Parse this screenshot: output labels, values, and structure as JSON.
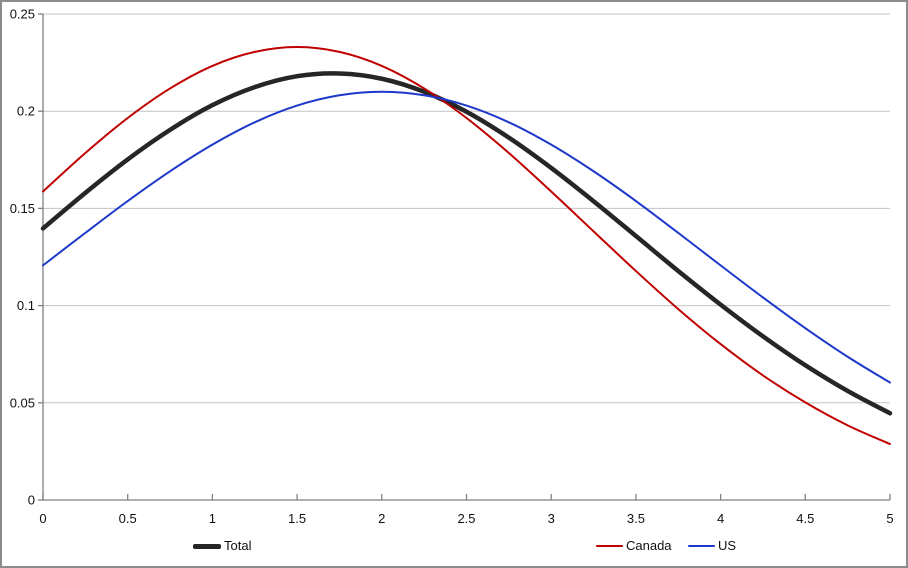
{
  "chart_data": {
    "type": "line",
    "x": [
      0,
      0.25,
      0.5,
      0.75,
      1,
      1.25,
      1.5,
      1.75,
      2,
      2.25,
      2.5,
      2.75,
      3,
      3.25,
      3.5,
      3.75,
      4,
      4.25,
      4.5,
      4.75,
      5
    ],
    "series": [
      {
        "name": "Total",
        "color": "#262626",
        "line_width": 4.5,
        "values": [
          0.1397,
          0.158,
          0.1752,
          0.1904,
          0.2031,
          0.2124,
          0.218,
          0.2194,
          0.2167,
          0.21,
          0.1997,
          0.1864,
          0.1708,
          0.1537,
          0.1358,
          0.1178,
          0.1005,
          0.0842,
          0.0693,
          0.0561,
          0.0446
        ]
      },
      {
        "name": "Canada",
        "color": "#c00000",
        "line_width": 2,
        "values": [
          0.1587,
          0.1785,
          0.1965,
          0.2117,
          0.2233,
          0.2305,
          0.233,
          0.2305,
          0.2233,
          0.2117,
          0.1965,
          0.1785,
          0.1587,
          0.1382,
          0.1178,
          0.0982,
          0.0802,
          0.0641,
          0.0502,
          0.0384,
          0.0288
        ]
      },
      {
        "name": "US",
        "color": "#1c38cb",
        "line_width": 2,
        "values": [
          0.1207,
          0.1374,
          0.1538,
          0.1691,
          0.1828,
          0.1943,
          0.2029,
          0.2082,
          0.21,
          0.2082,
          0.2029,
          0.1943,
          0.1828,
          0.1691,
          0.1538,
          0.1374,
          0.1207,
          0.1042,
          0.0884,
          0.0737,
          0.0604
        ]
      }
    ],
    "xlim": [
      0,
      5
    ],
    "ylim": [
      0,
      0.25
    ],
    "xticks": {
      "values": [
        0,
        0.5,
        1,
        1.5,
        2,
        2.5,
        3,
        3.5,
        4,
        4.5,
        5
      ],
      "labels": [
        "0",
        "0.5",
        "1",
        "1.5",
        "2",
        "2.5",
        "3",
        "3.5",
        "4",
        "4.5",
        "5"
      ]
    },
    "yticks": {
      "values": [
        0,
        0.05,
        0.1,
        0.15,
        0.2,
        0.25
      ],
      "labels": [
        "0",
        "0.05",
        "0.1",
        "0.15",
        "0.2",
        "0.25"
      ]
    },
    "title": "",
    "xlabel": "",
    "ylabel": "",
    "grid": "horizontal",
    "legend_position": "bottom",
    "colors": {
      "axis": "#808080",
      "grid": "#c3c3c3",
      "text": "#111111",
      "background": "#ffffff",
      "frame_border": "#8b8b8b"
    }
  },
  "legend": {
    "items": [
      {
        "label": "Total"
      },
      {
        "label": "Canada"
      },
      {
        "label": "US"
      }
    ]
  }
}
